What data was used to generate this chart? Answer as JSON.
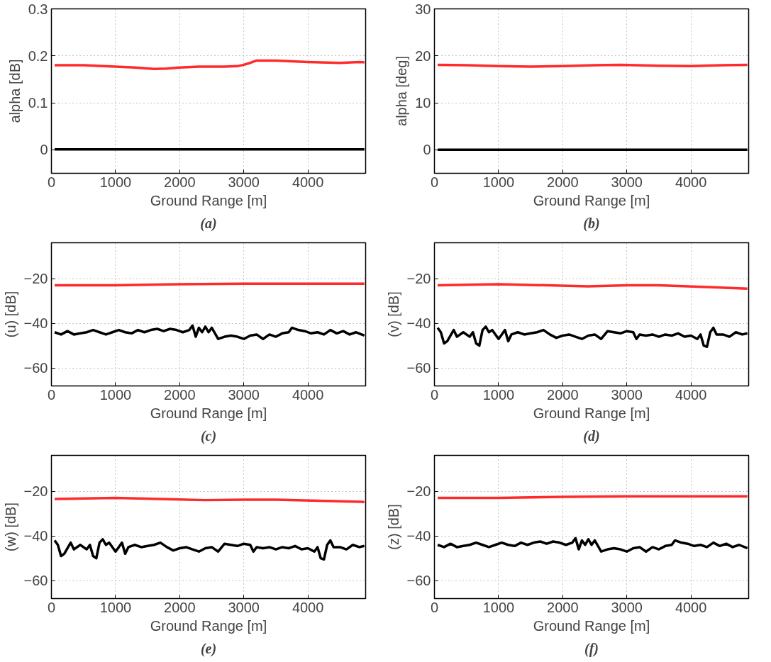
{
  "chart_data": [
    {
      "type": "line",
      "xlabel": "Ground Range [m]",
      "ylabel": "alpha [dB]",
      "annotations": [
        "(a)"
      ],
      "xlim": [
        0,
        4900
      ],
      "xticks": [
        0,
        1000,
        2000,
        3000,
        4000
      ],
      "ylim": [
        -0.05,
        0.3
      ],
      "yticks": [
        0,
        0.1,
        0.2,
        0.3
      ],
      "grid": true,
      "series": [
        {
          "color": "#ff2a2a",
          "x": [
            50,
            500,
            1000,
            1300,
            1600,
            1800,
            2000,
            2300,
            2500,
            2700,
            2900,
            3000,
            3100,
            3200,
            3500,
            4000,
            4500,
            4800,
            4880
          ],
          "values": [
            0.18,
            0.18,
            0.177,
            0.175,
            0.172,
            0.173,
            0.175,
            0.177,
            0.177,
            0.177,
            0.178,
            0.181,
            0.185,
            0.19,
            0.19,
            0.187,
            0.185,
            0.187,
            0.186
          ]
        },
        {
          "color": "#000000",
          "x": [
            50,
            1000,
            2000,
            3000,
            4000,
            4880
          ],
          "values": [
            0.001,
            0.001,
            0.001,
            0.001,
            0.001,
            0.001
          ]
        }
      ]
    },
    {
      "type": "line",
      "xlabel": "Ground Range [m]",
      "ylabel": "alpha [deg]",
      "annotations": [
        "(b)"
      ],
      "xlim": [
        0,
        4900
      ],
      "xticks": [
        0,
        1000,
        2000,
        3000,
        4000
      ],
      "ylim": [
        -5,
        30
      ],
      "yticks": [
        0,
        10,
        20,
        30
      ],
      "grid": true,
      "series": [
        {
          "color": "#ff2a2a",
          "x": [
            50,
            500,
            1000,
            1500,
            2000,
            2500,
            2900,
            3500,
            4000,
            4500,
            4880
          ],
          "values": [
            18.1,
            18,
            17.8,
            17.7,
            17.8,
            18,
            18.1,
            17.9,
            17.8,
            18,
            18.1
          ]
        },
        {
          "color": "#000000",
          "x": [
            50,
            1000,
            2000,
            3000,
            4000,
            4880
          ],
          "values": [
            0,
            0,
            0,
            0,
            0,
            0
          ]
        }
      ]
    },
    {
      "type": "line",
      "xlabel": "Ground Range [m]",
      "ylabel": "(u) [dB]",
      "annotations": [
        "(c)"
      ],
      "xlim": [
        0,
        4900
      ],
      "xticks": [
        0,
        1000,
        2000,
        3000,
        4000
      ],
      "ylim": [
        -68,
        -4
      ],
      "yticks": [
        -60,
        -40,
        -20
      ],
      "grid": true,
      "series": [
        {
          "color": "#ff2a2a",
          "x": [
            50,
            1000,
            2000,
            3000,
            4000,
            4880
          ],
          "values": [
            -23,
            -23,
            -22.5,
            -22.3,
            -22.3,
            -22.3
          ]
        },
        {
          "color": "#000000",
          "x": [
            50,
            150,
            250,
            350,
            450,
            550,
            650,
            750,
            850,
            950,
            1050,
            1150,
            1250,
            1350,
            1450,
            1550,
            1650,
            1750,
            1850,
            1950,
            2050,
            2150,
            2200,
            2250,
            2300,
            2350,
            2400,
            2450,
            2500,
            2600,
            2700,
            2800,
            2900,
            3000,
            3100,
            3200,
            3300,
            3400,
            3500,
            3600,
            3700,
            3750,
            3850,
            3950,
            4050,
            4150,
            4250,
            4350,
            4450,
            4550,
            4650,
            4750,
            4880
          ],
          "values": [
            -44,
            -45,
            -43.5,
            -45,
            -44.5,
            -44,
            -43,
            -44,
            -45,
            -44,
            -43,
            -44,
            -44.5,
            -43,
            -44,
            -43,
            -42.5,
            -43.5,
            -42.5,
            -43,
            -44,
            -43,
            -41,
            -46,
            -42,
            -44,
            -41.5,
            -44,
            -42,
            -47,
            -46,
            -45.5,
            -46,
            -47,
            -45.5,
            -45,
            -47,
            -45,
            -46,
            -44.5,
            -44,
            -42,
            -43,
            -43.5,
            -44.5,
            -44,
            -45,
            -43,
            -44.5,
            -43.5,
            -45,
            -44,
            -45.5
          ]
        }
      ]
    },
    {
      "type": "line",
      "xlabel": "Ground Range [m]",
      "ylabel": "(v) [dB]",
      "annotations": [
        "(d)"
      ],
      "xlim": [
        0,
        4900
      ],
      "xticks": [
        0,
        1000,
        2000,
        3000,
        4000
      ],
      "ylim": [
        -68,
        -4
      ],
      "yticks": [
        -60,
        -40,
        -20
      ],
      "grid": true,
      "series": [
        {
          "color": "#ff2a2a",
          "x": [
            50,
            1000,
            2400,
            3000,
            3500,
            4880
          ],
          "values": [
            -23,
            -22.5,
            -23.5,
            -23,
            -23,
            -24.5
          ]
        },
        {
          "color": "#000000",
          "x": [
            50,
            100,
            150,
            200,
            300,
            350,
            450,
            550,
            600,
            650,
            700,
            750,
            800,
            850,
            900,
            1000,
            1050,
            1100,
            1150,
            1200,
            1300,
            1400,
            1500,
            1600,
            1700,
            1800,
            1900,
            2000,
            2100,
            2200,
            2300,
            2400,
            2500,
            2600,
            2700,
            2800,
            2900,
            3000,
            3100,
            3150,
            3200,
            3300,
            3400,
            3500,
            3600,
            3700,
            3800,
            3900,
            4000,
            4100,
            4150,
            4200,
            4250,
            4300,
            4350,
            4400,
            4500,
            4600,
            4700,
            4800,
            4880
          ],
          "values": [
            -42,
            -44,
            -49,
            -48,
            -43,
            -46,
            -44,
            -46,
            -44,
            -49,
            -50,
            -43,
            -41.5,
            -44,
            -43,
            -47,
            -45,
            -43,
            -48,
            -45,
            -44,
            -45,
            -44.5,
            -44,
            -43,
            -45,
            -46.5,
            -45.5,
            -45,
            -46,
            -47,
            -45.5,
            -45,
            -47,
            -43.5,
            -44,
            -44.5,
            -43.5,
            -44,
            -47,
            -45,
            -45.5,
            -45,
            -46,
            -45,
            -45.5,
            -44.5,
            -46,
            -45.5,
            -47,
            -45,
            -50,
            -50.5,
            -44,
            -42,
            -45,
            -45,
            -46,
            -44,
            -45,
            -44.5
          ]
        }
      ]
    },
    {
      "type": "line",
      "xlabel": "Ground Range [m]",
      "ylabel": "(w) [dB]",
      "annotations": [
        "(e)"
      ],
      "xlim": [
        0,
        4900
      ],
      "xticks": [
        0,
        1000,
        2000,
        3000,
        4000
      ],
      "ylim": [
        -68,
        -4
      ],
      "yticks": [
        -60,
        -40,
        -20
      ],
      "grid": true,
      "series": [
        {
          "color": "#ff2a2a",
          "x": [
            50,
            1000,
            2400,
            3000,
            3500,
            4880
          ],
          "values": [
            -23.5,
            -23,
            -24,
            -23.8,
            -23.8,
            -24.8
          ]
        },
        {
          "color": "#000000",
          "x": [
            50,
            100,
            150,
            200,
            300,
            350,
            450,
            550,
            600,
            650,
            700,
            750,
            800,
            850,
            900,
            1000,
            1050,
            1100,
            1150,
            1200,
            1300,
            1400,
            1500,
            1600,
            1700,
            1800,
            1900,
            2000,
            2100,
            2200,
            2300,
            2400,
            2500,
            2600,
            2700,
            2800,
            2900,
            3000,
            3100,
            3150,
            3200,
            3300,
            3400,
            3500,
            3600,
            3700,
            3800,
            3900,
            4000,
            4100,
            4150,
            4200,
            4250,
            4300,
            4350,
            4400,
            4500,
            4600,
            4700,
            4800,
            4880
          ],
          "values": [
            -42,
            -44,
            -49,
            -48,
            -43,
            -46,
            -44,
            -46,
            -44,
            -49,
            -50,
            -43,
            -41.5,
            -44,
            -43,
            -47,
            -45,
            -43,
            -48,
            -45,
            -44,
            -45,
            -44.5,
            -44,
            -43,
            -45,
            -46.5,
            -45.5,
            -45,
            -46,
            -47,
            -45.5,
            -45,
            -47,
            -43.5,
            -44,
            -44.5,
            -43.5,
            -44,
            -47,
            -45,
            -45.5,
            -45,
            -46,
            -45,
            -45.5,
            -44.5,
            -46,
            -45.5,
            -47,
            -45,
            -50,
            -50.5,
            -44,
            -42,
            -45,
            -45,
            -46,
            -44,
            -45,
            -44.5
          ]
        }
      ]
    },
    {
      "type": "line",
      "xlabel": "Ground Range [m]",
      "ylabel": "(z) [dB]",
      "annotations": [
        "(f)"
      ],
      "xlim": [
        0,
        4900
      ],
      "xticks": [
        0,
        1000,
        2000,
        3000,
        4000
      ],
      "ylim": [
        -68,
        -4
      ],
      "yticks": [
        -60,
        -40,
        -20
      ],
      "grid": true,
      "series": [
        {
          "color": "#ff2a2a",
          "x": [
            50,
            1000,
            2000,
            3000,
            4000,
            4880
          ],
          "values": [
            -23,
            -23,
            -22.5,
            -22.3,
            -22.3,
            -22.3
          ]
        },
        {
          "color": "#000000",
          "x": [
            50,
            150,
            250,
            350,
            450,
            550,
            650,
            750,
            850,
            950,
            1050,
            1150,
            1250,
            1350,
            1450,
            1550,
            1650,
            1750,
            1850,
            1950,
            2050,
            2150,
            2200,
            2250,
            2300,
            2350,
            2400,
            2450,
            2500,
            2600,
            2700,
            2800,
            2900,
            3000,
            3100,
            3200,
            3300,
            3400,
            3500,
            3600,
            3700,
            3750,
            3850,
            3950,
            4050,
            4150,
            4250,
            4350,
            4450,
            4550,
            4650,
            4750,
            4880
          ],
          "values": [
            -44,
            -45,
            -43.5,
            -45,
            -44.5,
            -44,
            -43,
            -44,
            -45,
            -44,
            -43,
            -44,
            -44.5,
            -43,
            -44,
            -43,
            -42.5,
            -43.5,
            -42.5,
            -43,
            -44,
            -43,
            -41,
            -46,
            -42,
            -44,
            -41.5,
            -44,
            -42,
            -47,
            -46,
            -45.5,
            -46,
            -47,
            -45.5,
            -45,
            -47,
            -45,
            -46,
            -44.5,
            -44,
            -42,
            -43,
            -43.5,
            -44.5,
            -44,
            -45,
            -43,
            -44.5,
            -43.5,
            -45,
            -44,
            -45.5
          ]
        }
      ]
    }
  ]
}
